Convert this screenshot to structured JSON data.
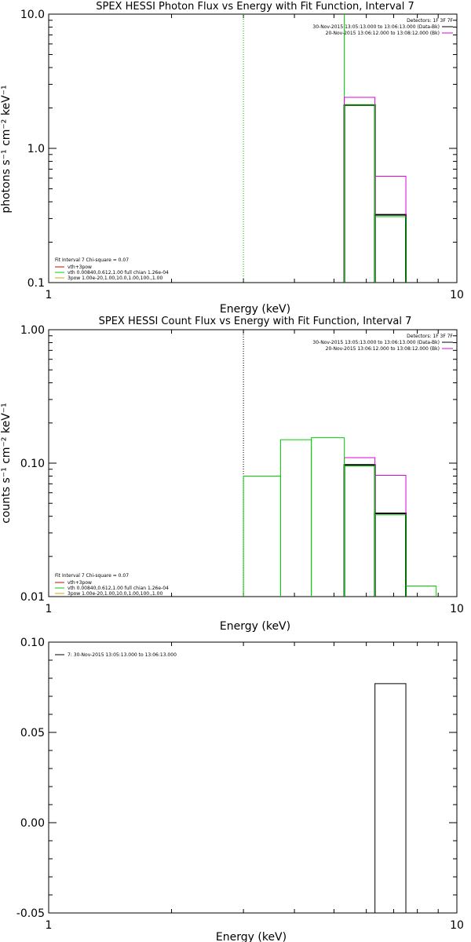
{
  "chart_data": [
    {
      "type": "line",
      "title": "SPEX HESSI Photon Flux vs Energy with Fit Function, Interval 7",
      "xlabel": "Energy (keV)",
      "ylabel": "photons s⁻¹ cm⁻² keV⁻¹",
      "xscale": "log",
      "yscale": "log",
      "xlim": [
        1,
        10
      ],
      "ylim": [
        0.1,
        10
      ],
      "xticks": [
        "1",
        "10"
      ],
      "yticks": [
        {
          "v": 0.1,
          "label": "0.1"
        },
        {
          "v": 1,
          "label": "1.0"
        },
        {
          "v": 10,
          "label": "10.0"
        }
      ],
      "legend_top": {
        "detectors": "Detectors: 1F 3F 7F",
        "data_label": "30-Nov-2015 13:05:13.000 to 13:06:13.000 (Data-Bk)",
        "bk_label": "20-Nov-2015 13:06:12.000 to 13:08:12.000 (Bk)"
      },
      "legend_bottom": {
        "header": "Fit Interval  7    Chi-square = 0.07",
        "items": [
          "vth+3pow",
          "vth 0.00840,0.612,1.00   full chian 1.26e-04",
          "3pow 1.00e-20,1.00,10.0,1.00,100.,1.00"
        ]
      },
      "vlines": [
        {
          "x": 3.0,
          "color": "#00c000",
          "dotted": true
        },
        {
          "x": 5.3,
          "color": "#00c000",
          "dotted": false
        }
      ],
      "series": [
        {
          "color": "#000000",
          "width": 2,
          "bins": [
            [
              5.3,
              6.3,
              2.1
            ],
            [
              6.3,
              7.5,
              0.32
            ]
          ]
        },
        {
          "color": "#e000e0",
          "width": 1,
          "bins": [
            [
              5.3,
              6.3,
              2.4
            ],
            [
              6.3,
              7.5,
              0.62
            ]
          ]
        },
        {
          "color": "#00d000",
          "width": 1,
          "bins": [
            [
              5.3,
              6.3,
              2.1
            ],
            [
              6.3,
              7.5,
              0.31
            ]
          ]
        }
      ]
    },
    {
      "type": "line",
      "title": "SPEX HESSI Count Flux vs Energy with Fit Function, Interval 7",
      "xlabel": "Energy (keV)",
      "ylabel": "counts s⁻¹ cm⁻² keV⁻¹",
      "xscale": "log",
      "yscale": "log",
      "xlim": [
        1,
        10
      ],
      "ylim": [
        0.01,
        1
      ],
      "xticks": [
        "1",
        "10"
      ],
      "yticks": [
        {
          "v": 0.01,
          "label": "0.01"
        },
        {
          "v": 0.1,
          "label": "0.10"
        },
        {
          "v": 1,
          "label": "1.00"
        }
      ],
      "legend_top": {
        "detectors": "Detectors: 1F 3F 7F",
        "data_label": "30-Nov-2015 13:05:13.000 to 13:06:13.000 (Data-Bk)",
        "bk_label": "20-Nov-2015 13:06:12.000 to 13:08:12.000 (Bk)"
      },
      "legend_bottom": {
        "header": "Fit Interval  7    Chi-square = 0.07",
        "items": [
          "vth+3pow",
          "vth 0.00840,0.612,1.00   full chian 1.26e-04",
          "3pow 1.00e-20,1.00,10.0,1.00,100.,1.00"
        ]
      },
      "vlines": [
        {
          "x": 3.0,
          "color": "#000000",
          "dotted": true
        }
      ],
      "series": [
        {
          "color": "#000000",
          "width": 2,
          "bins": [
            [
              5.3,
              6.3,
              0.097
            ],
            [
              6.3,
              7.5,
              0.042
            ]
          ]
        },
        {
          "color": "#e000e0",
          "width": 1,
          "bins": [
            [
              5.3,
              6.3,
              0.11
            ],
            [
              6.3,
              7.5,
              0.081
            ]
          ]
        },
        {
          "color": "#00d000",
          "width": 1,
          "bins": [
            [
              3.0,
              3.7,
              0.08
            ],
            [
              3.7,
              4.4,
              0.15
            ],
            [
              4.4,
              5.3,
              0.155
            ],
            [
              5.3,
              6.3,
              0.095
            ],
            [
              6.3,
              7.5,
              0.041
            ],
            [
              7.5,
              8.9,
              0.012
            ]
          ]
        }
      ]
    },
    {
      "type": "bar",
      "title": "",
      "xlabel": "Energy (keV)",
      "ylabel": "",
      "xscale": "log",
      "yscale": "linear",
      "xlim": [
        1,
        10
      ],
      "ylim": [
        -0.05,
        0.1
      ],
      "xticks": [
        "1",
        "10"
      ],
      "yticks": [
        {
          "v": -0.05,
          "label": "-0.05"
        },
        {
          "v": 0,
          "label": "0.00"
        },
        {
          "v": 0.05,
          "label": "0.05"
        },
        {
          "v": 0.1,
          "label": "0.10"
        }
      ],
      "legend_items": [
        "7: 30-Nov-2015 13:05:13.000 to 13:06:13.000"
      ],
      "series": [
        {
          "color": "#000000",
          "width": 1,
          "bins": [
            [
              6.3,
              7.5,
              0.077
            ]
          ]
        }
      ]
    }
  ]
}
